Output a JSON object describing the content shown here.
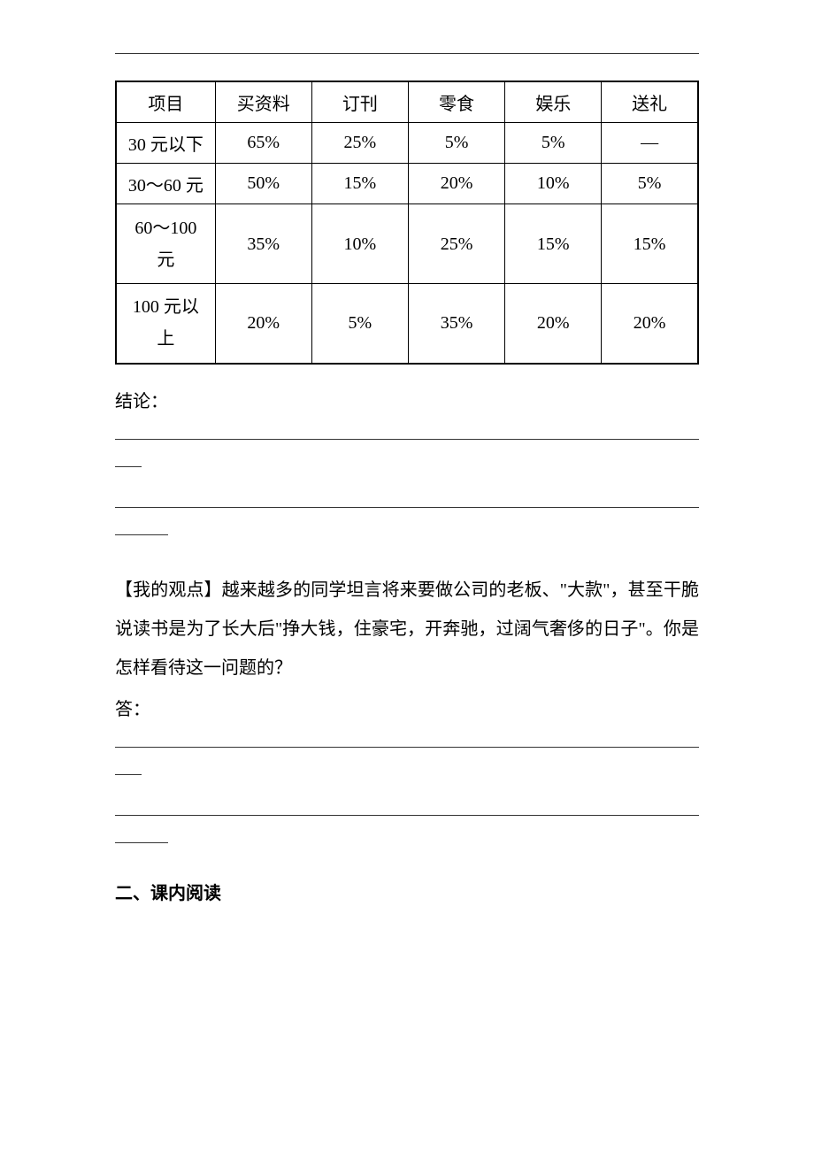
{
  "table": {
    "headers": [
      "项目",
      "买资料",
      "订刊",
      "零食",
      "娱乐",
      "送礼"
    ],
    "rows": [
      {
        "label": "30 元以下",
        "values": [
          "65%",
          "25%",
          "5%",
          "5%",
          "—"
        ],
        "tall": false
      },
      {
        "label": "30～60 元",
        "values": [
          "50%",
          "15%",
          "20%",
          "10%",
          "5%"
        ],
        "tall": false
      },
      {
        "label": "60～100\n元",
        "values": [
          "35%",
          "10%",
          "25%",
          "15%",
          "15%"
        ],
        "tall": true
      },
      {
        "label": "100 元以\n上",
        "values": [
          "20%",
          "5%",
          "35%",
          "20%",
          "20%"
        ],
        "tall": true
      }
    ]
  },
  "conclusion_label": "结论：",
  "opinion_section": {
    "heading": "【我的观点】",
    "text": "越来越多的同学坦言将来要做公司的老板、\"大款\"，甚至干脆说读书是为了长大后\"挣大钱，住豪宅，开奔驰，过阔气奢侈的日子\"。你是怎样看待这一问题的？"
  },
  "answer_label": "答：",
  "section2_heading": "二、课内阅读",
  "colors": {
    "text": "#000000",
    "background": "#ffffff",
    "border": "#000000",
    "underline": "#333333"
  }
}
